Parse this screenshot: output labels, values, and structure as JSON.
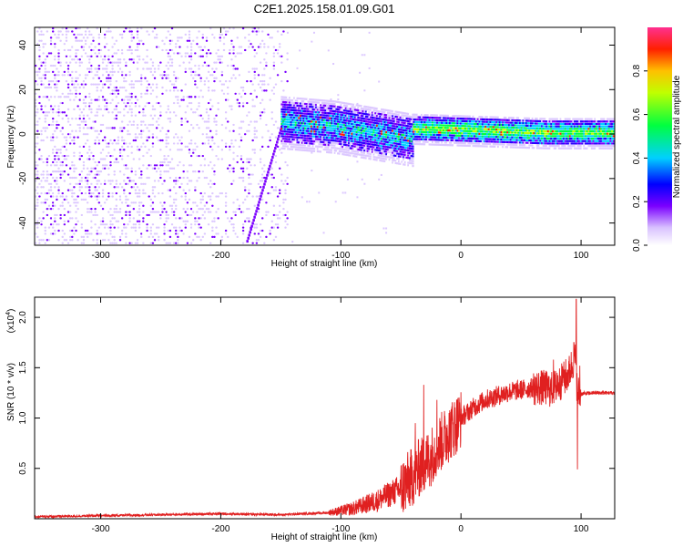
{
  "figure_title": "C2E1.2025.158.01.09.G01",
  "chart_data": [
    {
      "type": "heatmap",
      "title": "C2E1.2025.158.01.09.G01",
      "xlabel": "Height of straight line (km)",
      "ylabel": "Frequency (Hz)",
      "xlim": [
        -355,
        128
      ],
      "ylim": [
        -50,
        48
      ],
      "x_ticks": [
        -300,
        -200,
        -100,
        0,
        100
      ],
      "y_ticks": [
        -40,
        -20,
        0,
        20,
        40
      ],
      "colorbar": {
        "label": "Normalized spectral amplitude",
        "range": [
          0,
          1
        ],
        "ticks": [
          0.0,
          0.2,
          0.4,
          0.6,
          0.8
        ],
        "tick_labels": [
          "0.0",
          "0.2",
          "0.4",
          "0.6",
          "0.8"
        ],
        "colors": [
          "#ffffff",
          "#c8a8ff",
          "#7a00ff",
          "#0000ff",
          "#00e0ff",
          "#00ff40",
          "#ffff00",
          "#ff8000",
          "#ff0000",
          "#ff0080"
        ]
      },
      "regions": [
        {
          "x_range": [
            -355,
            -145
          ],
          "freq_range": [
            -50,
            48
          ],
          "description_level": 0.15
        },
        {
          "x_range": [
            -150,
            -40
          ],
          "center_freq": [
            6,
            5,
            4,
            2,
            0,
            -2
          ],
          "level": 0.5
        },
        {
          "x_range": [
            -40,
            128
          ],
          "center_freq": [
            3,
            2,
            1,
            1
          ],
          "level": 0.7
        }
      ],
      "ridge": {
        "x": [
          -178,
          -148
        ],
        "freq": [
          -48,
          6
        ]
      }
    },
    {
      "type": "line",
      "xlabel": "Height of straight line (km)",
      "ylabel": "SNR (10 * v/v)",
      "y_multiplier": "(x10",
      "y_multiplier_exp": "4",
      "y_multiplier_close": ")",
      "xlim": [
        -355,
        128
      ],
      "ylim": [
        0.0,
        2.2
      ],
      "x_ticks": [
        -300,
        -200,
        -100,
        0,
        100
      ],
      "y_ticks": [
        0.5,
        1.0,
        1.5,
        2.0
      ],
      "y_tick_labels": [
        "0.5",
        "1.0",
        "1.5",
        "2.0"
      ],
      "series": [
        {
          "color": "#e02020",
          "x": [
            -355,
            -300,
            -250,
            -200,
            -150,
            -130,
            -110,
            -100,
            -90,
            -80,
            -70,
            -60,
            -50,
            -40,
            -35,
            -30,
            -25,
            -20,
            -15,
            -10,
            -5,
            0,
            5,
            10,
            20,
            30,
            40,
            50,
            60,
            70,
            75,
            80,
            85,
            90,
            93,
            95,
            97,
            100,
            110,
            120,
            128
          ],
          "y": [
            0.02,
            0.03,
            0.04,
            0.05,
            0.04,
            0.05,
            0.06,
            0.08,
            0.1,
            0.14,
            0.18,
            0.24,
            0.3,
            0.42,
            0.5,
            0.55,
            0.62,
            0.72,
            0.78,
            0.86,
            0.92,
            1.0,
            1.05,
            1.1,
            1.18,
            1.22,
            1.26,
            1.28,
            1.3,
            1.3,
            1.28,
            1.32,
            1.38,
            1.45,
            1.55,
            1.6,
            1.25,
            1.24,
            1.25,
            1.25,
            1.25
          ],
          "spikes": [
            {
              "x": -31,
              "y": 1.33
            },
            {
              "x": -38,
              "y": 0.95
            },
            {
              "x": -20,
              "y": 1.18
            },
            {
              "x": -10,
              "y": 1.05
            },
            {
              "x": 77,
              "y": 1.58
            },
            {
              "x": 80,
              "y": 1.45
            },
            {
              "x": 85,
              "y": 1.4
            },
            {
              "x": 88,
              "y": 1.45
            },
            {
              "x": 94,
              "y": 1.75
            },
            {
              "x": 96,
              "y": 2.18
            },
            {
              "x": 97,
              "y": 0.49
            },
            {
              "x": 99,
              "y": 1.52
            }
          ]
        }
      ]
    }
  ]
}
